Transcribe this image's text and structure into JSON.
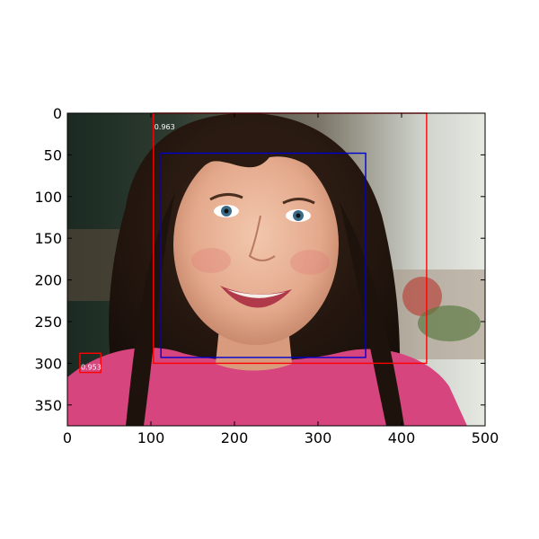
{
  "image": {
    "subject": "smiling girl with dark hair in pink shirt",
    "x_range": [
      0,
      500
    ],
    "y_range": [
      0,
      375
    ],
    "y_inverted": true
  },
  "axes": {
    "x_ticks": [
      0,
      100,
      200,
      300,
      400,
      500
    ],
    "x_tick_labels": [
      "0",
      "100",
      "200",
      "300",
      "400",
      "500"
    ],
    "y_ticks": [
      0,
      50,
      100,
      150,
      200,
      250,
      300,
      350
    ],
    "y_tick_labels": [
      "0",
      "50",
      "100",
      "150",
      "200",
      "250",
      "300",
      "350"
    ]
  },
  "detections": [
    {
      "kind": "prediction",
      "color": "#ff0000",
      "bbox_data": [
        103,
        0,
        430,
        300
      ],
      "score": "0.963"
    },
    {
      "kind": "prediction",
      "color": "#ff0000",
      "bbox_data": [
        15,
        288,
        40,
        311
      ],
      "score": "0.953"
    },
    {
      "kind": "ground-truth",
      "color": "#0000cc",
      "bbox_data": [
        112,
        48,
        357,
        293
      ],
      "score": ""
    }
  ],
  "colors": {
    "frame": "#000000",
    "prediction_box": "#ff0000",
    "ground_truth_box": "#0000cc"
  }
}
